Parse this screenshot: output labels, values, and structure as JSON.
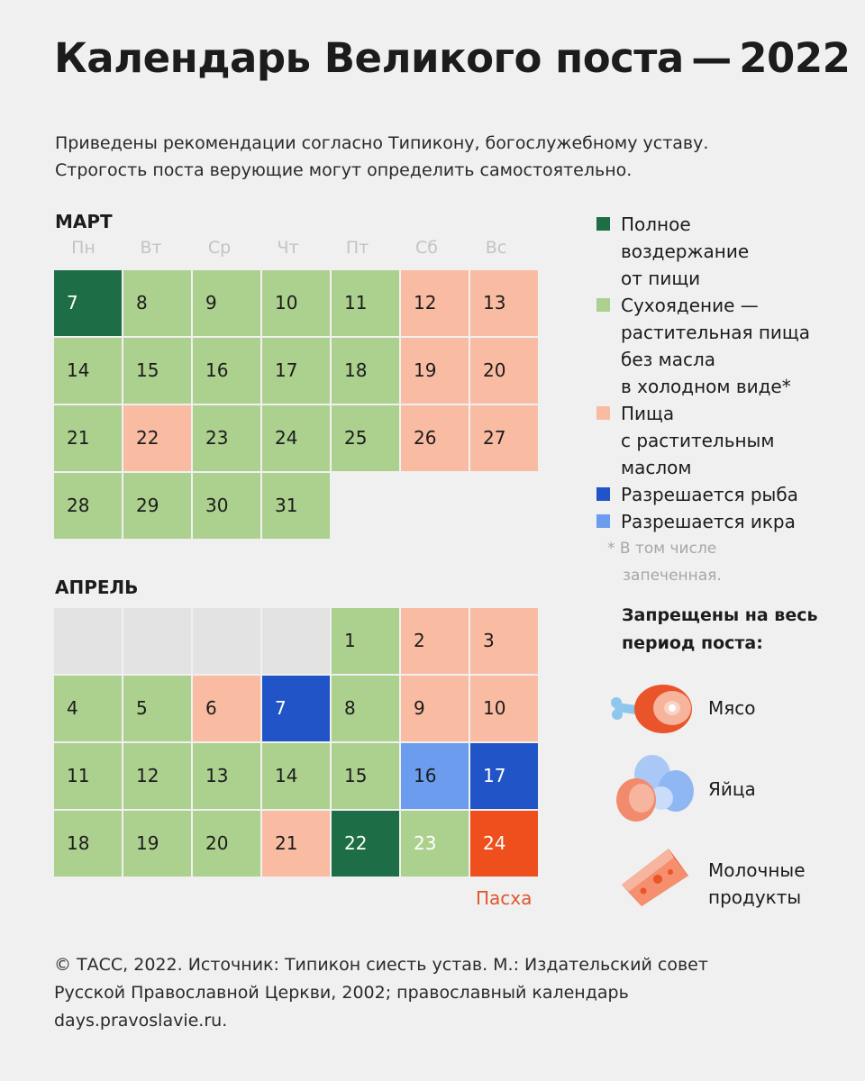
{
  "title": "Календарь Великого поста — 2022",
  "subtitle": [
    "Приведены рекомендации согласно Типикону, богослужебному уставу.",
    "Строгость поста верующие могут определить самостоятельно."
  ],
  "weekdays": [
    "Пн",
    "Вт",
    "Ср",
    "Чт",
    "Пт",
    "Сб",
    "Вс"
  ],
  "months": [
    {
      "name": "МАРТ",
      "weeks": [
        [
          {
            "d": "7",
            "t": "dark"
          },
          {
            "d": "8",
            "t": "green"
          },
          {
            "d": "9",
            "t": "green"
          },
          {
            "d": "10",
            "t": "green"
          },
          {
            "d": "11",
            "t": "green"
          },
          {
            "d": "12",
            "t": "peach"
          },
          {
            "d": "13",
            "t": "peach"
          }
        ],
        [
          {
            "d": "14",
            "t": "green"
          },
          {
            "d": "15",
            "t": "green"
          },
          {
            "d": "16",
            "t": "green"
          },
          {
            "d": "17",
            "t": "green"
          },
          {
            "d": "18",
            "t": "green"
          },
          {
            "d": "19",
            "t": "peach"
          },
          {
            "d": "20",
            "t": "peach"
          }
        ],
        [
          {
            "d": "21",
            "t": "green"
          },
          {
            "d": "22",
            "t": "peach"
          },
          {
            "d": "23",
            "t": "green"
          },
          {
            "d": "24",
            "t": "green"
          },
          {
            "d": "25",
            "t": "green"
          },
          {
            "d": "26",
            "t": "peach"
          },
          {
            "d": "27",
            "t": "peach"
          }
        ],
        [
          {
            "d": "28",
            "t": "green"
          },
          {
            "d": "29",
            "t": "green"
          },
          {
            "d": "30",
            "t": "green"
          },
          {
            "d": "31",
            "t": "green"
          },
          null,
          null,
          null
        ]
      ]
    },
    {
      "name": "АПРЕЛЬ",
      "weeks": [
        [
          {
            "d": "",
            "t": "grey"
          },
          {
            "d": "",
            "t": "grey"
          },
          {
            "d": "",
            "t": "grey"
          },
          {
            "d": "",
            "t": "grey"
          },
          {
            "d": "1",
            "t": "green"
          },
          {
            "d": "2",
            "t": "peach"
          },
          {
            "d": "3",
            "t": "peach"
          }
        ],
        [
          {
            "d": "4",
            "t": "green"
          },
          {
            "d": "5",
            "t": "green"
          },
          {
            "d": "6",
            "t": "peach"
          },
          {
            "d": "7",
            "t": "blue"
          },
          {
            "d": "8",
            "t": "green"
          },
          {
            "d": "9",
            "t": "peach"
          },
          {
            "d": "10",
            "t": "peach"
          }
        ],
        [
          {
            "d": "11",
            "t": "green"
          },
          {
            "d": "12",
            "t": "green"
          },
          {
            "d": "13",
            "t": "green"
          },
          {
            "d": "14",
            "t": "green"
          },
          {
            "d": "15",
            "t": "green"
          },
          {
            "d": "16",
            "t": "lightblue"
          },
          {
            "d": "17",
            "t": "blue"
          }
        ],
        [
          {
            "d": "18",
            "t": "green"
          },
          {
            "d": "19",
            "t": "green"
          },
          {
            "d": "20",
            "t": "green"
          },
          {
            "d": "21",
            "t": "peach"
          },
          {
            "d": "22",
            "t": "dark"
          },
          {
            "d": "23",
            "t": "green light-text"
          },
          {
            "d": "24",
            "t": "red"
          }
        ]
      ]
    }
  ],
  "pascha_label": "Пасха",
  "legend": [
    {
      "color": "#1d6e46",
      "lines": [
        "Полное",
        "воздержание",
        "от пищи"
      ]
    },
    {
      "color": "#acd08e",
      "lines": [
        "Сухоядение —",
        "растительная пища",
        "без масла",
        "в холодном виде*"
      ]
    },
    {
      "color": "#f9bca3",
      "lines": [
        "Пища",
        "с растительным",
        "маслом"
      ]
    },
    {
      "color": "#2155c7",
      "lines": [
        "Разрешается рыба"
      ]
    },
    {
      "color": "#6b9cee",
      "lines": [
        "Разрешается икра"
      ]
    }
  ],
  "footnote": [
    "* В том числе",
    " запеченная."
  ],
  "banned_title": [
    "Запрещены на весь",
    "период поста:"
  ],
  "banned": [
    {
      "icon": "meat-icon",
      "lines": [
        "Мясо"
      ]
    },
    {
      "icon": "eggs-icon",
      "lines": [
        "Яйца"
      ]
    },
    {
      "icon": "cheese-icon",
      "lines": [
        "Молочные",
        "продукты"
      ]
    }
  ],
  "footer": [
    "© ТАСС, 2022. Источник: Типикон сиесть устав. М.: Издательский совет",
    "Русской Православной Церкви, 2002; православный календарь",
    "days.pravoslavie.ru."
  ]
}
